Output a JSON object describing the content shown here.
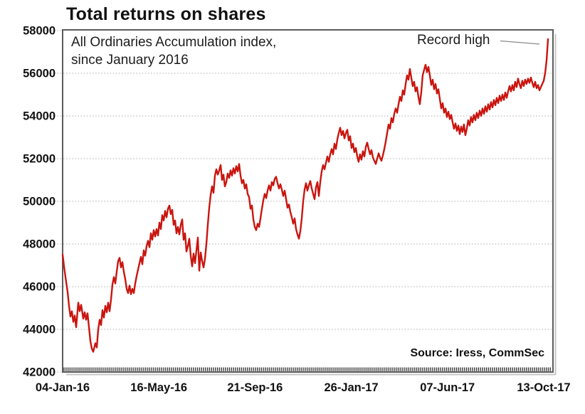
{
  "title": "Total returns on shares",
  "annotation": {
    "line1": "All Ordinaries Accumulation index,",
    "line2": "since January 2016"
  },
  "record_high": {
    "label": "Record high"
  },
  "source": "Source: Iress, CommSec",
  "colors": {
    "line": "#c9150f",
    "frame": "#5c5c5c",
    "grid": "#ababab",
    "tick_band": "#3a3a3a",
    "pointer": "#8a8a8a",
    "shadow": "#c6c6c6",
    "text": "#111111"
  },
  "chart_data": {
    "type": "line",
    "title": "Total returns on shares",
    "series_name": "All Ordinaries Accumulation index",
    "legend": "none",
    "grid": "horizontal-dotted",
    "y_axis": {
      "min": 42000,
      "max": 58000,
      "tick_step": 2000,
      "ticks": [
        58000,
        56000,
        54000,
        52000,
        50000,
        48000,
        46000,
        44000,
        42000
      ]
    },
    "x_axis": {
      "ticks": [
        {
          "t": 0.0,
          "label": "04-Jan-16"
        },
        {
          "t": 0.1962,
          "label": "16-May-16"
        },
        {
          "t": 0.3924,
          "label": "21-Sep-16"
        },
        {
          "t": 0.5886,
          "label": "26-Jan-17"
        },
        {
          "t": 0.7848,
          "label": "07-Jun-17"
        },
        {
          "t": 0.9811,
          "label": "13-Oct-17"
        }
      ]
    },
    "record_high_value": 57600,
    "points": [
      [
        0.0,
        47500
      ],
      [
        0.0029,
        46950
      ],
      [
        0.0058,
        46450
      ],
      [
        0.0102,
        45750
      ],
      [
        0.0131,
        45100
      ],
      [
        0.016,
        44600
      ],
      [
        0.0189,
        44850
      ],
      [
        0.0218,
        44350
      ],
      [
        0.0247,
        44650
      ],
      [
        0.0276,
        44100
      ],
      [
        0.0319,
        45250
      ],
      [
        0.0348,
        44850
      ],
      [
        0.0377,
        45150
      ],
      [
        0.0421,
        44500
      ],
      [
        0.045,
        44800
      ],
      [
        0.0479,
        44450
      ],
      [
        0.0508,
        44750
      ],
      [
        0.0537,
        44100
      ],
      [
        0.0566,
        43450
      ],
      [
        0.0595,
        43100
      ],
      [
        0.0624,
        42950
      ],
      [
        0.0668,
        43350
      ],
      [
        0.0697,
        43150
      ],
      [
        0.0726,
        44000
      ],
      [
        0.0755,
        44450
      ],
      [
        0.0784,
        44200
      ],
      [
        0.0813,
        44900
      ],
      [
        0.0842,
        44550
      ],
      [
        0.0871,
        45100
      ],
      [
        0.09,
        44800
      ],
      [
        0.0929,
        45250
      ],
      [
        0.0958,
        44850
      ],
      [
        0.0987,
        45400
      ],
      [
        0.1016,
        46100
      ],
      [
        0.1045,
        46450
      ],
      [
        0.1074,
        46150
      ],
      [
        0.1103,
        46700
      ],
      [
        0.1132,
        47200
      ],
      [
        0.1161,
        47350
      ],
      [
        0.119,
        46900
      ],
      [
        0.1219,
        47150
      ],
      [
        0.1248,
        46700
      ],
      [
        0.1277,
        46350
      ],
      [
        0.1306,
        45900
      ],
      [
        0.1335,
        45700
      ],
      [
        0.1364,
        46050
      ],
      [
        0.1393,
        45650
      ],
      [
        0.1422,
        45900
      ],
      [
        0.1452,
        45700
      ],
      [
        0.1481,
        46150
      ],
      [
        0.151,
        46500
      ],
      [
        0.1539,
        46800
      ],
      [
        0.1568,
        47100
      ],
      [
        0.1597,
        47400
      ],
      [
        0.1626,
        47050
      ],
      [
        0.1655,
        47700
      ],
      [
        0.1684,
        47450
      ],
      [
        0.1713,
        47900
      ],
      [
        0.1742,
        48150
      ],
      [
        0.1771,
        47850
      ],
      [
        0.18,
        48500
      ],
      [
        0.1829,
        48200
      ],
      [
        0.1858,
        48650
      ],
      [
        0.1887,
        48350
      ],
      [
        0.1916,
        48700
      ],
      [
        0.1945,
        48400
      ],
      [
        0.1974,
        49000
      ],
      [
        0.2003,
        48700
      ],
      [
        0.2032,
        49350
      ],
      [
        0.2061,
        49100
      ],
      [
        0.209,
        49550
      ],
      [
        0.2119,
        49250
      ],
      [
        0.2148,
        49650
      ],
      [
        0.2177,
        49800
      ],
      [
        0.2206,
        49400
      ],
      [
        0.2235,
        49600
      ],
      [
        0.2264,
        48900
      ],
      [
        0.2293,
        49100
      ],
      [
        0.2322,
        48500
      ],
      [
        0.2351,
        48800
      ],
      [
        0.238,
        48450
      ],
      [
        0.2409,
        48900
      ],
      [
        0.2438,
        49150
      ],
      [
        0.2467,
        48200
      ],
      [
        0.2496,
        48500
      ],
      [
        0.2525,
        47650
      ],
      [
        0.2554,
        47900
      ],
      [
        0.2583,
        48250
      ],
      [
        0.2612,
        47450
      ],
      [
        0.2641,
        46950
      ],
      [
        0.267,
        47550
      ],
      [
        0.2699,
        47100
      ],
      [
        0.2729,
        47700
      ],
      [
        0.2758,
        48300
      ],
      [
        0.2787,
        46750
      ],
      [
        0.2816,
        47600
      ],
      [
        0.2845,
        47200
      ],
      [
        0.2874,
        46900
      ],
      [
        0.2903,
        47300
      ],
      [
        0.2932,
        48000
      ],
      [
        0.2961,
        48900
      ],
      [
        0.299,
        49700
      ],
      [
        0.3019,
        50300
      ],
      [
        0.3048,
        50700
      ],
      [
        0.3077,
        50400
      ],
      [
        0.3106,
        51200
      ],
      [
        0.3135,
        51500
      ],
      [
        0.3164,
        51250
      ],
      [
        0.3193,
        51450
      ],
      [
        0.3222,
        51700
      ],
      [
        0.3251,
        51000
      ],
      [
        0.328,
        51250
      ],
      [
        0.3309,
        50700
      ],
      [
        0.3338,
        50900
      ],
      [
        0.3367,
        51300
      ],
      [
        0.3396,
        51100
      ],
      [
        0.3425,
        51450
      ],
      [
        0.3454,
        51200
      ],
      [
        0.3483,
        51550
      ],
      [
        0.3512,
        51300
      ],
      [
        0.3541,
        51650
      ],
      [
        0.357,
        51400
      ],
      [
        0.3599,
        51750
      ],
      [
        0.3628,
        51200
      ],
      [
        0.3657,
        50850
      ],
      [
        0.3686,
        51000
      ],
      [
        0.3715,
        50600
      ],
      [
        0.3744,
        50800
      ],
      [
        0.3773,
        50350
      ],
      [
        0.3802,
        50200
      ],
      [
        0.3831,
        49650
      ],
      [
        0.386,
        49800
      ],
      [
        0.3889,
        49150
      ],
      [
        0.3918,
        48800
      ],
      [
        0.3948,
        48650
      ],
      [
        0.3977,
        48950
      ],
      [
        0.4006,
        48800
      ],
      [
        0.4035,
        49200
      ],
      [
        0.4064,
        49650
      ],
      [
        0.4093,
        50050
      ],
      [
        0.4122,
        50350
      ],
      [
        0.4151,
        50150
      ],
      [
        0.418,
        50500
      ],
      [
        0.4209,
        50750
      ],
      [
        0.4238,
        50500
      ],
      [
        0.4267,
        50900
      ],
      [
        0.4296,
        50750
      ],
      [
        0.4325,
        51050
      ],
      [
        0.4354,
        51150
      ],
      [
        0.4383,
        50850
      ],
      [
        0.4412,
        50600
      ],
      [
        0.4441,
        50800
      ],
      [
        0.447,
        50550
      ],
      [
        0.4499,
        50250
      ],
      [
        0.4528,
        50500
      ],
      [
        0.4557,
        50100
      ],
      [
        0.4586,
        49700
      ],
      [
        0.4615,
        49850
      ],
      [
        0.4644,
        49500
      ],
      [
        0.4673,
        49250
      ],
      [
        0.4702,
        48950
      ],
      [
        0.4731,
        49200
      ],
      [
        0.476,
        48700
      ],
      [
        0.4789,
        48450
      ],
      [
        0.4818,
        48250
      ],
      [
        0.4847,
        48600
      ],
      [
        0.4876,
        49200
      ],
      [
        0.4905,
        50000
      ],
      [
        0.4934,
        50550
      ],
      [
        0.4963,
        50850
      ],
      [
        0.4992,
        50500
      ],
      [
        0.5022,
        50750
      ],
      [
        0.5051,
        50950
      ],
      [
        0.508,
        50600
      ],
      [
        0.5109,
        50350
      ],
      [
        0.5138,
        50100
      ],
      [
        0.5167,
        50650
      ],
      [
        0.5196,
        50900
      ],
      [
        0.5225,
        50250
      ],
      [
        0.5254,
        50900
      ],
      [
        0.5283,
        51400
      ],
      [
        0.5312,
        51700
      ],
      [
        0.5341,
        51500
      ],
      [
        0.537,
        51800
      ],
      [
        0.5399,
        52100
      ],
      [
        0.5428,
        51850
      ],
      [
        0.5457,
        52200
      ],
      [
        0.5486,
        52450
      ],
      [
        0.5515,
        52200
      ],
      [
        0.5544,
        52700
      ],
      [
        0.5573,
        52450
      ],
      [
        0.5602,
        52900
      ],
      [
        0.5631,
        53200
      ],
      [
        0.566,
        53450
      ],
      [
        0.5689,
        53100
      ],
      [
        0.5718,
        53300
      ],
      [
        0.5747,
        52950
      ],
      [
        0.5776,
        53200
      ],
      [
        0.5805,
        53350
      ],
      [
        0.5834,
        52850
      ],
      [
        0.5863,
        53050
      ],
      [
        0.5892,
        52500
      ],
      [
        0.5921,
        52700
      ],
      [
        0.595,
        52300
      ],
      [
        0.5979,
        52500
      ],
      [
        0.6008,
        52100
      ],
      [
        0.6037,
        51850
      ],
      [
        0.6066,
        52200
      ],
      [
        0.6095,
        51950
      ],
      [
        0.6125,
        52350
      ],
      [
        0.6154,
        52100
      ],
      [
        0.6183,
        52550
      ],
      [
        0.6212,
        52750
      ],
      [
        0.6241,
        52450
      ],
      [
        0.627,
        52200
      ],
      [
        0.6299,
        52400
      ],
      [
        0.6328,
        52050
      ],
      [
        0.6357,
        51900
      ],
      [
        0.6386,
        51750
      ],
      [
        0.6415,
        52000
      ],
      [
        0.6444,
        52250
      ],
      [
        0.6473,
        52050
      ],
      [
        0.6502,
        51900
      ],
      [
        0.6531,
        52150
      ],
      [
        0.656,
        52450
      ],
      [
        0.6589,
        52800
      ],
      [
        0.6618,
        53200
      ],
      [
        0.6647,
        53600
      ],
      [
        0.6676,
        53400
      ],
      [
        0.6705,
        53900
      ],
      [
        0.6734,
        53700
      ],
      [
        0.6763,
        54100
      ],
      [
        0.6792,
        54350
      ],
      [
        0.6821,
        54150
      ],
      [
        0.685,
        54550
      ],
      [
        0.6879,
        54900
      ],
      [
        0.6908,
        54700
      ],
      [
        0.6937,
        55200
      ],
      [
        0.6966,
        55000
      ],
      [
        0.6995,
        55500
      ],
      [
        0.7024,
        55900
      ],
      [
        0.7053,
        55700
      ],
      [
        0.7082,
        56200
      ],
      [
        0.7111,
        55800
      ],
      [
        0.714,
        55400
      ],
      [
        0.7169,
        55600
      ],
      [
        0.7198,
        55150
      ],
      [
        0.7227,
        55350
      ],
      [
        0.7256,
        54900
      ],
      [
        0.7285,
        54550
      ],
      [
        0.7314,
        55100
      ],
      [
        0.7343,
        55900
      ],
      [
        0.7372,
        56150
      ],
      [
        0.7402,
        56400
      ],
      [
        0.7431,
        56050
      ],
      [
        0.746,
        56300
      ],
      [
        0.7489,
        55900
      ],
      [
        0.7518,
        55450
      ],
      [
        0.7547,
        55700
      ],
      [
        0.7576,
        55250
      ],
      [
        0.7605,
        55500
      ],
      [
        0.7634,
        55050
      ],
      [
        0.7663,
        55250
      ],
      [
        0.7692,
        54800
      ],
      [
        0.7721,
        54350
      ],
      [
        0.775,
        54600
      ],
      [
        0.7779,
        54150
      ],
      [
        0.7808,
        54350
      ],
      [
        0.7837,
        53950
      ],
      [
        0.7866,
        54200
      ],
      [
        0.7895,
        53850
      ],
      [
        0.7924,
        54050
      ],
      [
        0.7953,
        53700
      ],
      [
        0.7982,
        53400
      ],
      [
        0.8011,
        53650
      ],
      [
        0.804,
        53300
      ],
      [
        0.8069,
        53550
      ],
      [
        0.8098,
        53150
      ],
      [
        0.8127,
        53500
      ],
      [
        0.8156,
        53250
      ],
      [
        0.8185,
        53600
      ],
      [
        0.8214,
        53100
      ],
      [
        0.8243,
        53400
      ],
      [
        0.8272,
        53800
      ],
      [
        0.8301,
        53550
      ],
      [
        0.833,
        53950
      ],
      [
        0.8359,
        53700
      ],
      [
        0.8388,
        54050
      ],
      [
        0.8417,
        53800
      ],
      [
        0.8446,
        54150
      ],
      [
        0.8475,
        53900
      ],
      [
        0.8505,
        54250
      ],
      [
        0.8534,
        54000
      ],
      [
        0.8563,
        54350
      ],
      [
        0.8592,
        54100
      ],
      [
        0.8621,
        54450
      ],
      [
        0.865,
        54200
      ],
      [
        0.8679,
        54550
      ],
      [
        0.8708,
        54300
      ],
      [
        0.8737,
        54650
      ],
      [
        0.8766,
        54400
      ],
      [
        0.8795,
        54750
      ],
      [
        0.8824,
        54500
      ],
      [
        0.8853,
        54850
      ],
      [
        0.8882,
        54600
      ],
      [
        0.8911,
        54950
      ],
      [
        0.894,
        54700
      ],
      [
        0.8969,
        55000
      ],
      [
        0.8998,
        54750
      ],
      [
        0.9027,
        55100
      ],
      [
        0.9056,
        54850
      ],
      [
        0.9085,
        55150
      ],
      [
        0.9114,
        55400
      ],
      [
        0.9143,
        55150
      ],
      [
        0.9172,
        55450
      ],
      [
        0.9201,
        55200
      ],
      [
        0.923,
        55600
      ],
      [
        0.9259,
        55350
      ],
      [
        0.9288,
        55750
      ],
      [
        0.9317,
        55500
      ],
      [
        0.9346,
        55300
      ],
      [
        0.9375,
        55650
      ],
      [
        0.9404,
        55400
      ],
      [
        0.9433,
        55700
      ],
      [
        0.9462,
        55500
      ],
      [
        0.9492,
        55750
      ],
      [
        0.9521,
        55550
      ],
      [
        0.955,
        55800
      ],
      [
        0.9579,
        55550
      ],
      [
        0.9608,
        55350
      ],
      [
        0.9637,
        55600
      ],
      [
        0.9666,
        55300
      ],
      [
        0.9695,
        55450
      ],
      [
        0.9724,
        55200
      ],
      [
        0.9753,
        55350
      ],
      [
        0.9782,
        55500
      ],
      [
        0.9811,
        55650
      ],
      [
        0.984,
        56000
      ],
      [
        0.9869,
        56600
      ],
      [
        0.9898,
        57600
      ]
    ]
  }
}
